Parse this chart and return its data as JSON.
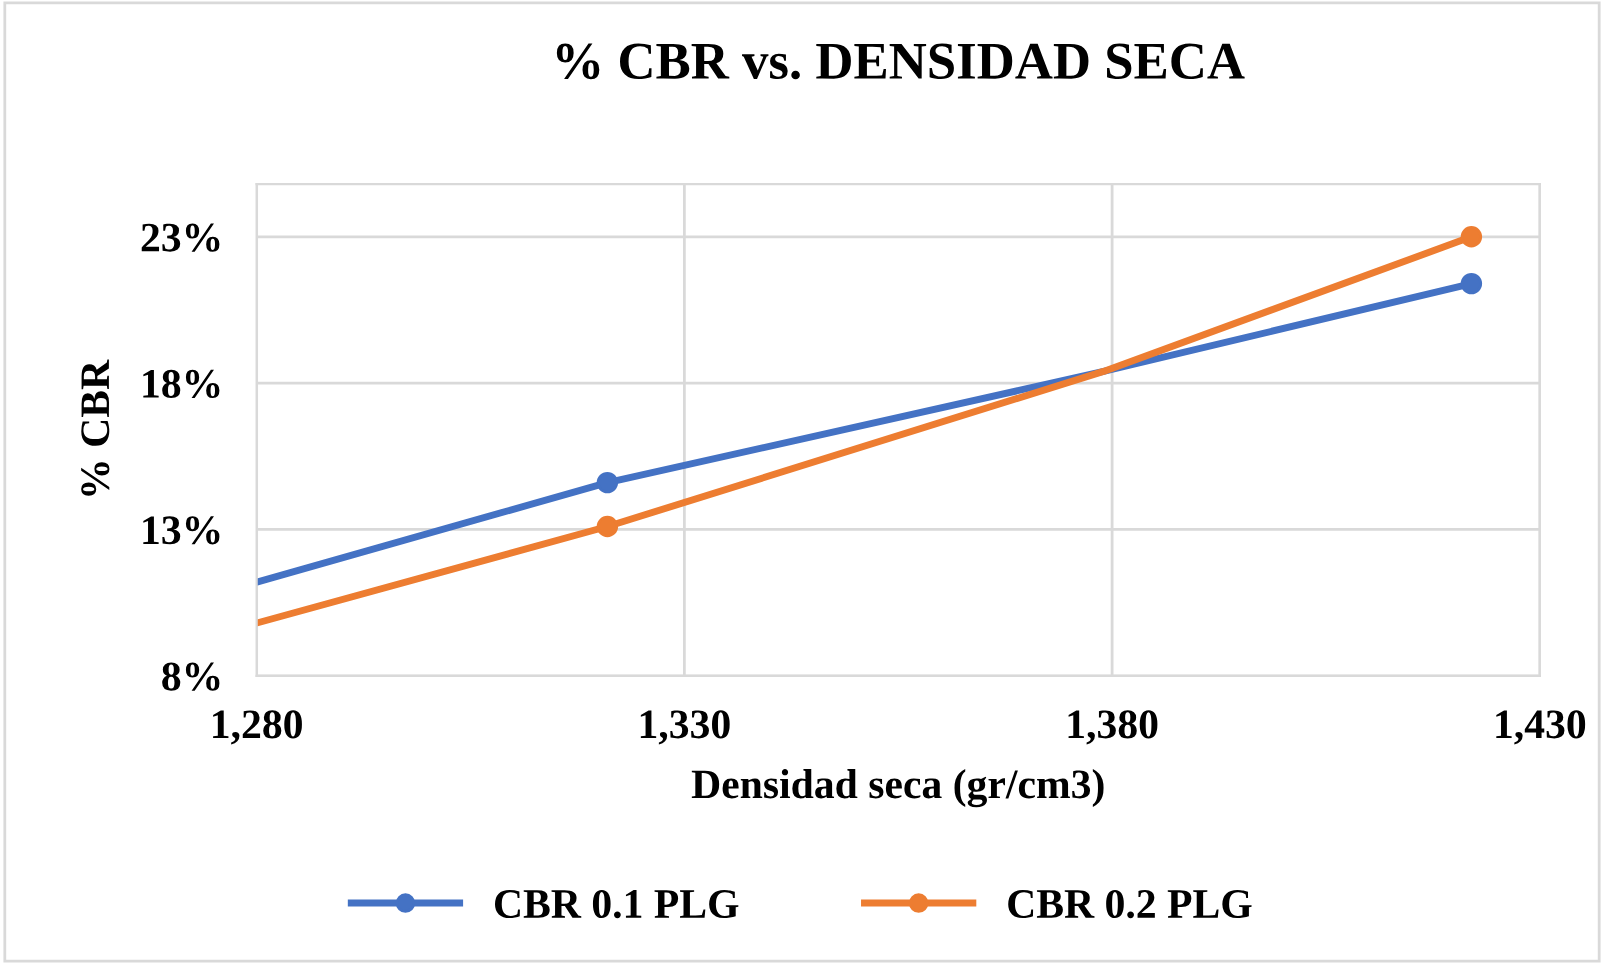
{
  "chart_data": {
    "type": "line",
    "title": "% CBR vs. DENSIDAD SECA",
    "xlabel": "Densidad seca (gr/cm3)",
    "ylabel": "% CBR",
    "series": [
      {
        "color": "#4472c4",
        "x": [
          1280,
          1321,
          1379,
          1422
        ],
        "values": [
          11.2,
          14.6,
          18.4,
          21.4
        ],
        "marker": "none"
      },
      {
        "color": "#ed7d31",
        "x": [
          1280,
          1321,
          1379,
          1422
        ],
        "values": [
          9.8,
          13.1,
          18.4,
          23.0
        ],
        "marker": "none"
      },
      {
        "type": "scatter",
        "name": "CBR 0.1 PLG",
        "color": "#4472c4",
        "x": [
          1321,
          1422
        ],
        "values": [
          14.6,
          21.4
        ]
      },
      {
        "type": "scatter",
        "name": "CBR 0.2 PLG",
        "color": "#ed7d31",
        "x": [
          1321,
          1422
        ],
        "values": [
          13.1,
          23.0
        ]
      }
    ],
    "xlim": [
      1280,
      1430
    ],
    "xticks": [
      {
        "value": 1280,
        "label": "1,280"
      },
      {
        "value": 1330,
        "label": "1,330"
      },
      {
        "value": 1380,
        "label": "1,380"
      },
      {
        "value": 1430,
        "label": "1,430"
      }
    ],
    "ylim": [
      8,
      24.8
    ],
    "yticks": [
      {
        "value": 8,
        "label": "8%"
      },
      {
        "value": 13,
        "label": "13%"
      },
      {
        "value": 18,
        "label": "18%"
      },
      {
        "value": 23,
        "label": "23%"
      }
    ],
    "grid": true,
    "legend": "bottom",
    "marker": "circle",
    "line_style": "solid"
  }
}
